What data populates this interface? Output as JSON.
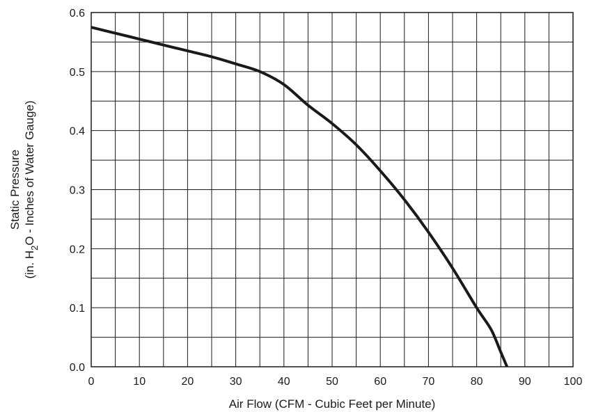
{
  "chart_data": {
    "type": "line",
    "xlabel": "Air Flow  (CFM -  Cubic Feet per Minute)",
    "ylabel_line1": "Static Pressure",
    "ylabel_line2_prefix": "(in. H",
    "ylabel_line2_sub": "2",
    "ylabel_line2_suffix": "O - Inches of Water Gauge)",
    "xlim": [
      0,
      100
    ],
    "ylim": [
      0,
      0.6
    ],
    "x_ticks": [
      0,
      10,
      20,
      30,
      40,
      50,
      60,
      70,
      80,
      90,
      100
    ],
    "x_tick_labels": [
      "0",
      "10",
      "20",
      "30",
      "40",
      "50",
      "60",
      "70",
      "80",
      "90",
      "100"
    ],
    "y_ticks": [
      0,
      0.1,
      0.2,
      0.3,
      0.4,
      0.5,
      0.6
    ],
    "y_tick_labels": [
      "0.0",
      "0.1",
      "0.2",
      "0.3",
      "0.4",
      "0.5",
      "0.6"
    ],
    "grid": true,
    "grid_x_step": 5,
    "grid_y_step": 0.05,
    "series": [
      {
        "color": "#1a1a1a",
        "x": [
          0,
          5,
          10,
          15,
          20,
          25,
          30,
          35,
          40,
          45,
          50,
          55,
          60,
          65,
          70,
          75,
          80,
          83,
          85,
          86.3
        ],
        "y": [
          0.575,
          0.565,
          0.555,
          0.545,
          0.535,
          0.525,
          0.513,
          0.5,
          0.478,
          0.443,
          0.412,
          0.376,
          0.332,
          0.283,
          0.228,
          0.167,
          0.1,
          0.063,
          0.025,
          0.0
        ]
      }
    ]
  }
}
